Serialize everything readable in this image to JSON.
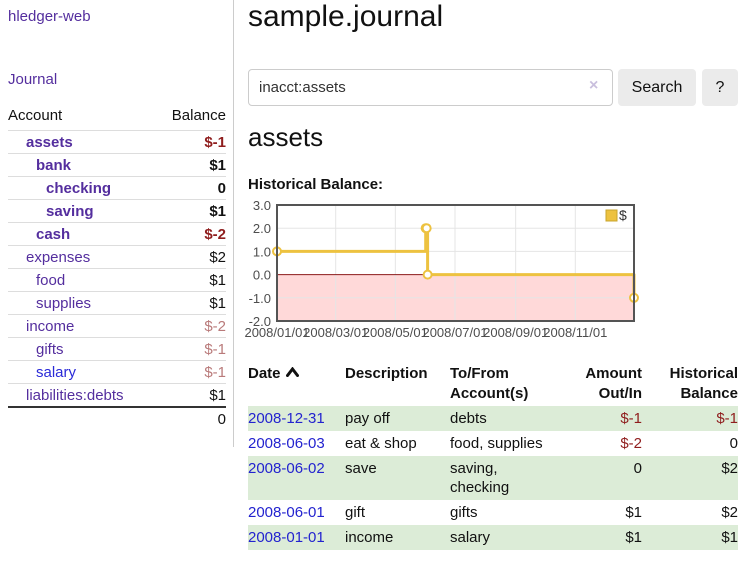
{
  "window_title": "hledger-web",
  "colors": {
    "link_purple": "#542e9e",
    "link_blue": "#2323cf",
    "negative_strong": "#8f1d1d",
    "negative_soft": "#b97a7a",
    "row_stripe_green": "#dcecd7",
    "chart_line": "#edc240",
    "chart_negative_fill": "#ffd9d9",
    "chart_zero_line": "#8b1a1a"
  },
  "sidebar": {
    "brand": "hledger-web",
    "journal_label": "Journal",
    "accounts_table": {
      "account_header": "Account",
      "balance_header": "Balance",
      "accounts": [
        {
          "name": "assets",
          "level": 1,
          "bold": true,
          "balance": "$-1",
          "negative": "strong",
          "link_color": "purple"
        },
        {
          "name": "bank",
          "level": 2,
          "bold": true,
          "balance": "$1",
          "negative": "none",
          "link_color": "purple"
        },
        {
          "name": "checking",
          "level": 3,
          "bold": true,
          "balance": "0",
          "negative": "none",
          "link_color": "purple"
        },
        {
          "name": "saving",
          "level": 3,
          "bold": true,
          "balance": "$1",
          "negative": "none",
          "link_color": "purple"
        },
        {
          "name": "cash",
          "level": 2,
          "bold": true,
          "balance": "$-2",
          "negative": "strong",
          "link_color": "purple"
        },
        {
          "name": "expenses",
          "level": 1,
          "bold": false,
          "balance": "$2",
          "negative": "none",
          "link_color": "purple"
        },
        {
          "name": "food",
          "level": 2,
          "bold": false,
          "balance": "$1",
          "negative": "none",
          "link_color": "purple"
        },
        {
          "name": "supplies",
          "level": 2,
          "bold": false,
          "balance": "$1",
          "negative": "none",
          "link_color": "purple"
        },
        {
          "name": "income",
          "level": 1,
          "bold": false,
          "balance": "$-2",
          "negative": "soft",
          "link_color": "purple"
        },
        {
          "name": "gifts",
          "level": 2,
          "bold": false,
          "balance": "$-1",
          "negative": "soft",
          "link_color": "purple"
        },
        {
          "name": "salary",
          "level": 2,
          "bold": false,
          "balance": "$-1",
          "negative": "soft",
          "link_color": "blue"
        },
        {
          "name": "liabilities:debts",
          "level": 1,
          "bold": false,
          "balance": "$1",
          "negative": "none",
          "link_color": "purple"
        }
      ],
      "total": "0"
    }
  },
  "main": {
    "title": "sample.journal",
    "search": {
      "value": "inacct:assets",
      "clear_icon": "×",
      "button_label": "Search",
      "help_label": "?"
    },
    "account_heading": "assets",
    "balance_section_label": "Historical Balance:"
  },
  "chart_data": {
    "type": "line",
    "title": "Historical Balance:",
    "step": true,
    "x_start": "2008-01-01",
    "x_end": "2008-12-31",
    "ylim": [
      -2,
      3
    ],
    "y_ticks": [
      3,
      2,
      1,
      0,
      -1,
      -2
    ],
    "x_ticks": [
      "2008/01/01",
      "2008/03/01",
      "2008/05/01",
      "2008/07/01",
      "2008/09/01",
      "2008/11/01"
    ],
    "series": [
      {
        "name": "$",
        "color": "#edc240",
        "points": [
          [
            "2008-01-01",
            1
          ],
          [
            "2008-06-01",
            2
          ],
          [
            "2008-06-02",
            2
          ],
          [
            "2008-06-03",
            0
          ],
          [
            "2008-12-31",
            -1
          ]
        ]
      }
    ],
    "legend_position": "top-right",
    "grid": true,
    "negative_fill": "#ffd9d9",
    "zero_line_color": "#8b1a1a"
  },
  "register": {
    "headers": [
      {
        "lines": [
          "Date"
        ],
        "align": "left",
        "sortable": true
      },
      {
        "lines": [
          "Description"
        ],
        "align": "left",
        "sortable": false
      },
      {
        "lines": [
          "To/From",
          "Account(s)"
        ],
        "align": "left",
        "sortable": false
      },
      {
        "lines": [
          "Amount",
          "Out/In"
        ],
        "align": "right",
        "sortable": false
      },
      {
        "lines": [
          "Historical",
          "Balance"
        ],
        "align": "right",
        "sortable": false
      }
    ],
    "rows": [
      {
        "date": "2008-12-31",
        "description": "pay off",
        "accounts": [
          "debts"
        ],
        "amount": "$-1",
        "amount_negative": true,
        "balance": "$-1",
        "balance_negative": true
      },
      {
        "date": "2008-06-03",
        "description": "eat & shop",
        "accounts": [
          "food, supplies"
        ],
        "amount": "$-2",
        "amount_negative": true,
        "balance": "0",
        "balance_negative": false
      },
      {
        "date": "2008-06-02",
        "description": "save",
        "accounts": [
          "saving,",
          "checking"
        ],
        "amount": "0",
        "amount_negative": false,
        "balance": "$2",
        "balance_negative": false
      },
      {
        "date": "2008-06-01",
        "description": "gift",
        "accounts": [
          "gifts"
        ],
        "amount": "$1",
        "amount_negative": false,
        "balance": "$2",
        "balance_negative": false
      },
      {
        "date": "2008-01-01",
        "description": "income",
        "accounts": [
          "salary"
        ],
        "amount": "$1",
        "amount_negative": false,
        "balance": "$1",
        "balance_negative": false
      }
    ]
  }
}
